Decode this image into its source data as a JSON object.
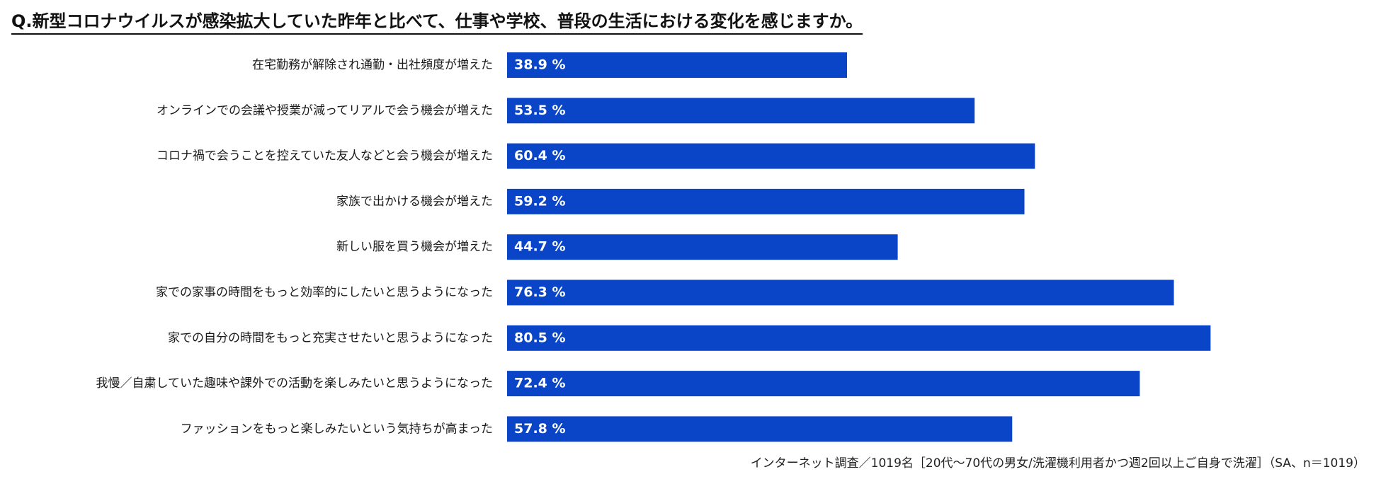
{
  "chart_data": {
    "type": "bar",
    "orientation": "horizontal",
    "title": "Q.新型コロナウイルスが感染拡大していた昨年と比べて、仕事や学校、普段の生活における変化を感じますか。",
    "categories": [
      "在宅勤務が解除され通勤・出社頻度が増えた",
      "オンラインでの会議や授業が減ってリアルで会う機会が増えた",
      "コロナ禍で会うことを控えていた友人などと会う機会が増えた",
      "家族で出かける機会が増えた",
      "新しい服を買う機会が増えた",
      "家での家事の時間をもっと効率的にしたいと思うようになった",
      "家での自分の時間をもっと充実させたいと思うようになった",
      "我慢／自粛していた趣味や課外での活動を楽しみたいと思うようになった",
      "ファッションをもっと楽しみたいという気持ちが高まった"
    ],
    "values": [
      38.9,
      53.5,
      60.4,
      59.2,
      44.7,
      76.3,
      80.5,
      72.4,
      57.8
    ],
    "value_labels": [
      "38.9 %",
      "53.5 %",
      "60.4 %",
      "59.2 %",
      "44.7 %",
      "76.3 %",
      "80.5 %",
      "72.4 %",
      "57.8 %"
    ],
    "unit": "%",
    "xlim": [
      0,
      100
    ],
    "xlabel": "",
    "ylabel": "",
    "grid": false,
    "bar_color": "#0a45c7",
    "label_color": "#ffffff"
  },
  "footnote": "インターネット調査／1019名［20代～70代の男女/洗濯機利用者かつ週2回以上ご自身で洗濯］（SA、n＝1019）"
}
